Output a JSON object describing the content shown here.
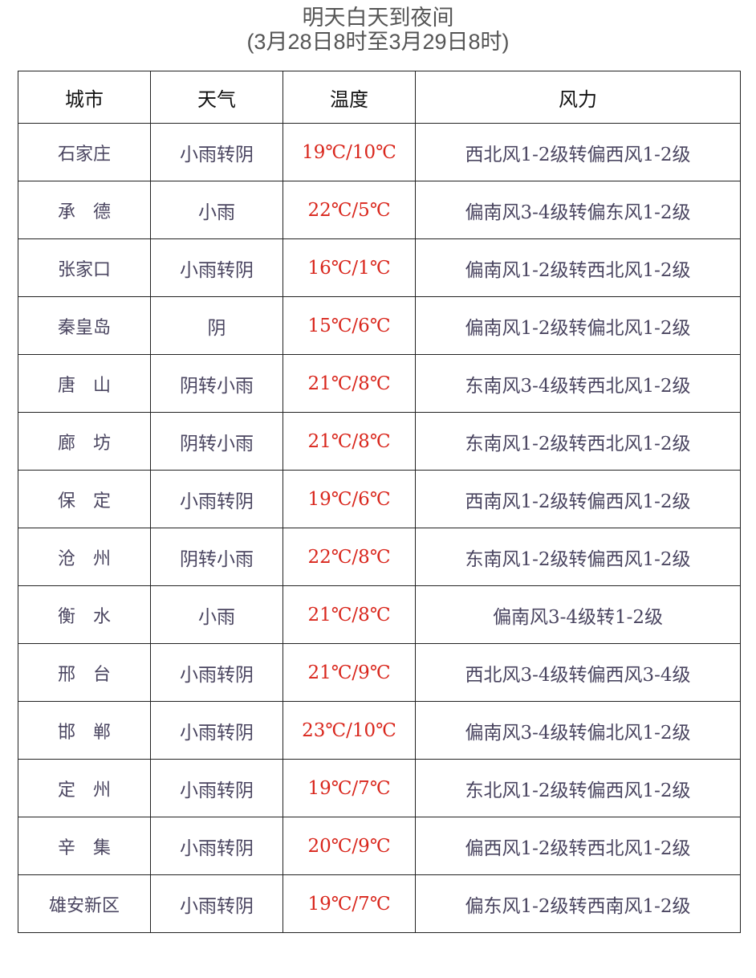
{
  "title": "明天白天到夜间",
  "subtitle": "(3月28日8时至3月29日8时)",
  "colors": {
    "temperature": "#d9261c",
    "text": "#4a4560"
  },
  "columns": [
    "城市",
    "天气",
    "温度",
    "风力"
  ],
  "rows": [
    {
      "city": "石家庄",
      "weather": "小雨转阴",
      "temp": "19℃/10℃",
      "wind": "西北风1-2级转偏西风1-2级"
    },
    {
      "city": "承　德",
      "weather": "小雨",
      "temp": "22℃/5℃",
      "wind": "偏南风3-4级转偏东风1-2级"
    },
    {
      "city": "张家口",
      "weather": "小雨转阴",
      "temp": "16℃/1℃",
      "wind": "偏南风1-2级转西北风1-2级"
    },
    {
      "city": "秦皇岛",
      "weather": "阴",
      "temp": "15℃/6℃",
      "wind": "偏南风1-2级转偏北风1-2级"
    },
    {
      "city": "唐　山",
      "weather": "阴转小雨",
      "temp": "21℃/8℃",
      "wind": "东南风3-4级转西北风1-2级"
    },
    {
      "city": "廊　坊",
      "weather": "阴转小雨",
      "temp": "21℃/8℃",
      "wind": "东南风1-2级转西北风1-2级"
    },
    {
      "city": "保　定",
      "weather": "小雨转阴",
      "temp": "19℃/6℃",
      "wind": "西南风1-2级转偏西风1-2级"
    },
    {
      "city": "沧　州",
      "weather": "阴转小雨",
      "temp": "22℃/8℃",
      "wind": "东南风1-2级转偏西风1-2级"
    },
    {
      "city": "衡　水",
      "weather": "小雨",
      "temp": "21℃/8℃",
      "wind": "偏南风3-4级转1-2级"
    },
    {
      "city": "邢　台",
      "weather": "小雨转阴",
      "temp": "21℃/9℃",
      "wind": "西北风3-4级转偏西风3-4级"
    },
    {
      "city": "邯　郸",
      "weather": "小雨转阴",
      "temp": "23℃/10℃",
      "wind": "偏南风3-4级转偏北风1-2级"
    },
    {
      "city": "定　州",
      "weather": "小雨转阴",
      "temp": "19℃/7℃",
      "wind": "东北风1-2级转偏西风1-2级"
    },
    {
      "city": "辛　集",
      "weather": "小雨转阴",
      "temp": "20℃/9℃",
      "wind": "偏西风1-2级转西北风1-2级"
    },
    {
      "city": "雄安新区",
      "weather": "小雨转阴",
      "temp": "19℃/7℃",
      "wind": "偏东风1-2级转西南风1-2级"
    }
  ]
}
